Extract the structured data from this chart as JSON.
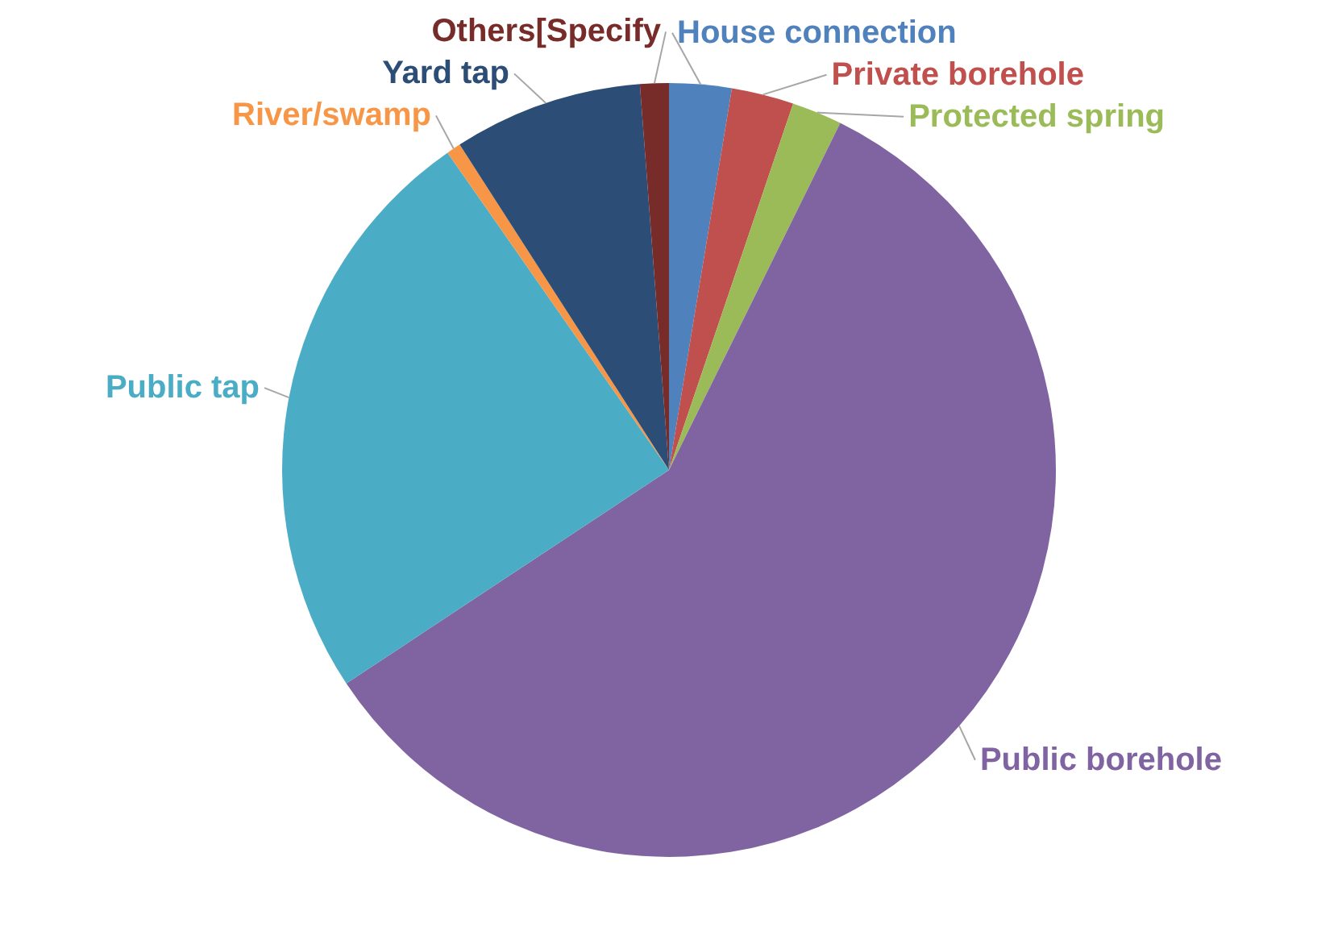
{
  "chart_data": {
    "type": "pie",
    "categories": [
      "House connection",
      "Private borehole",
      "Protected spring",
      "Public borehole",
      "Public tap",
      "River/swamp",
      "Yard tap",
      "Others[Specify"
    ],
    "values": [
      2.6,
      2.6,
      2.1,
      58.4,
      24.6,
      0.6,
      7.9,
      1.2
    ],
    "colors": [
      "#4f81bd",
      "#c0504d",
      "#9bbb59",
      "#8064a2",
      "#4bacc6",
      "#f79646",
      "#2c4d75",
      "#772c2a"
    ]
  }
}
